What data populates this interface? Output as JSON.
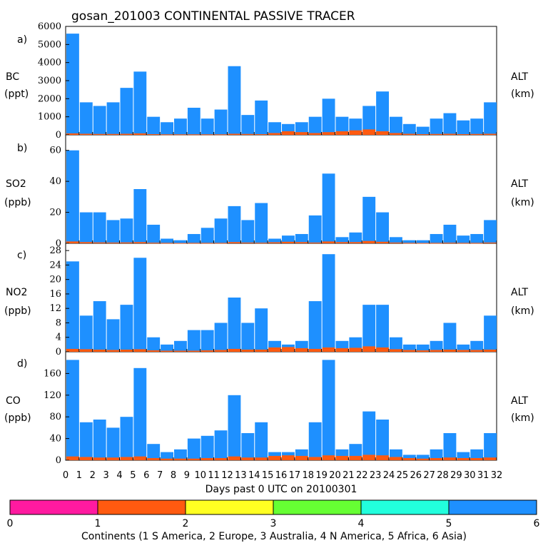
{
  "header": {
    "title": "gosan_201003 CONTINENTAL PASSIVE TRACER"
  },
  "panels": [
    {
      "letter": "a)",
      "species": "BC",
      "unit": "(ppt)",
      "right_label": "ALT",
      "right_unit": "(km)"
    },
    {
      "letter": "b)",
      "species": "SO2",
      "unit": "(ppb)",
      "right_label": "ALT",
      "right_unit": "(km)"
    },
    {
      "letter": "c)",
      "species": "NO2",
      "unit": "(ppb)",
      "right_label": "ALT",
      "right_unit": "(km)"
    },
    {
      "letter": "d)",
      "species": "CO",
      "unit": "(ppb)",
      "right_label": "ALT",
      "right_unit": "(km)"
    }
  ],
  "colorbar": {
    "ticks": [
      "0",
      "1",
      "2",
      "3",
      "4",
      "5",
      "6"
    ],
    "colors": [
      "#ff1aa0",
      "#ff5a10",
      "#ffff22",
      "#66ff33",
      "#22ffdd",
      "#1e90ff"
    ],
    "caption": "Continents (1 S America, 2 Europe, 3 Australia, 4 N America, 5 Africa, 6 Asia)"
  },
  "chart_data": {
    "type": "bar",
    "stacked": true,
    "title": "gosan_201003 CONTINENTAL PASSIVE TRACER",
    "xlabel": "Days past 0 UTC on 20100301",
    "xlim": [
      0,
      32
    ],
    "xticks": [
      0,
      1,
      2,
      3,
      4,
      5,
      6,
      7,
      8,
      9,
      10,
      11,
      12,
      13,
      14,
      15,
      16,
      17,
      18,
      19,
      20,
      21,
      22,
      23,
      24,
      25,
      26,
      27,
      28,
      29,
      30,
      31,
      32
    ],
    "x": [
      0,
      1,
      2,
      3,
      4,
      5,
      6,
      7,
      8,
      9,
      10,
      11,
      12,
      13,
      14,
      15,
      16,
      17,
      18,
      19,
      20,
      21,
      22,
      23,
      24,
      25,
      26,
      27,
      28,
      29,
      30,
      31
    ],
    "colors": {
      "Asia": "#1e90ff",
      "Europe": "#ff5a10",
      "Australia": "#ffff22",
      "N America": "#66ff33"
    },
    "panels": [
      {
        "name": "BC",
        "ylabel": "BC (ppt)",
        "ylim": [
          0,
          6000
        ],
        "yticks": [
          "0",
          "1000",
          "2000",
          "3000",
          "4000",
          "5000",
          "6000"
        ],
        "series": [
          {
            "name": "Asia (total)",
            "values": [
              5600,
              1800,
              1600,
              1800,
              2600,
              3500,
              1000,
              700,
              900,
              1500,
              900,
              1400,
              3800,
              1100,
              1900,
              700,
              600,
              700,
              1000,
              2000,
              1000,
              900,
              1600,
              2400,
              1000,
              600,
              450,
              900,
              1200,
              800,
              900,
              1800
            ]
          },
          {
            "name": "Europe",
            "values": [
              80,
              60,
              50,
              50,
              60,
              80,
              40,
              30,
              30,
              30,
              30,
              30,
              60,
              50,
              40,
              100,
              200,
              150,
              100,
              150,
              200,
              250,
              300,
              200,
              100,
              60,
              40,
              50,
              60,
              40,
              50,
              60
            ]
          }
        ]
      },
      {
        "name": "SO2",
        "ylabel": "SO2 (ppb)",
        "ylim": [
          0,
          70
        ],
        "yticks": [
          "0",
          "20",
          "40",
          "60"
        ],
        "series": [
          {
            "name": "Asia (total)",
            "values": [
              60,
              20,
              20,
              15,
              16,
              35,
              12,
              3,
              2,
              6,
              10,
              16,
              24,
              15,
              26,
              3,
              5,
              6,
              18,
              45,
              4,
              7,
              30,
              20,
              4,
              2,
              2,
              6,
              12,
              5,
              6,
              15
            ]
          },
          {
            "name": "Europe",
            "values": [
              1.2,
              0.8,
              0.6,
              0.5,
              0.6,
              0.8,
              0.4,
              0.3,
              0.2,
              0.3,
              0.3,
              0.3,
              0.8,
              0.5,
              0.4,
              0.7,
              1.0,
              0.8,
              0.5,
              1.2,
              0.8,
              0.8,
              1.5,
              1.0,
              0.5,
              0.3,
              0.2,
              0.3,
              0.4,
              0.3,
              0.3,
              0.5
            ]
          }
        ]
      },
      {
        "name": "NO2",
        "ylabel": "NO2 (ppb)",
        "ylim": [
          0,
          30
        ],
        "yticks": [
          "0",
          "4",
          "8",
          "12",
          "16",
          "20",
          "24",
          "28"
        ],
        "series": [
          {
            "name": "Asia (total)",
            "values": [
              25,
              10,
              14,
              9,
              13,
              26,
              4,
              2,
              3,
              6,
              6,
              8,
              15,
              8,
              12,
              3,
              2,
              3,
              14,
              27,
              3,
              4,
              13,
              13,
              4,
              2,
              2,
              3,
              8,
              2,
              3,
              10
            ]
          },
          {
            "name": "Europe",
            "values": [
              0.8,
              0.7,
              0.6,
              0.5,
              0.6,
              0.7,
              0.4,
              0.3,
              0.3,
              0.3,
              0.4,
              0.5,
              0.8,
              0.6,
              0.6,
              1.2,
              1.3,
              1.0,
              0.8,
              1.2,
              1.0,
              1.1,
              1.5,
              1.2,
              0.7,
              0.5,
              0.4,
              0.5,
              0.6,
              0.5,
              0.5,
              0.6
            ]
          }
        ]
      },
      {
        "name": "CO",
        "ylabel": "CO (ppb)",
        "ylim": [
          0,
          200
        ],
        "yticks": [
          "0",
          "40",
          "80",
          "120",
          "160"
        ],
        "series": [
          {
            "name": "Asia (total)",
            "values": [
              185,
              70,
              75,
              60,
              80,
              170,
              30,
              15,
              20,
              40,
              45,
              55,
              120,
              50,
              70,
              15,
              15,
              20,
              70,
              185,
              20,
              30,
              90,
              75,
              20,
              10,
              10,
              20,
              50,
              15,
              20,
              50
            ]
          },
          {
            "name": "Europe",
            "values": [
              7,
              6,
              5,
              5,
              6,
              7,
              4,
              3,
              3,
              3,
              4,
              4,
              7,
              5,
              5,
              8,
              9,
              8,
              6,
              9,
              8,
              8,
              10,
              9,
              6,
              4,
              3,
              4,
              5,
              4,
              4,
              5
            ]
          }
        ]
      }
    ]
  }
}
